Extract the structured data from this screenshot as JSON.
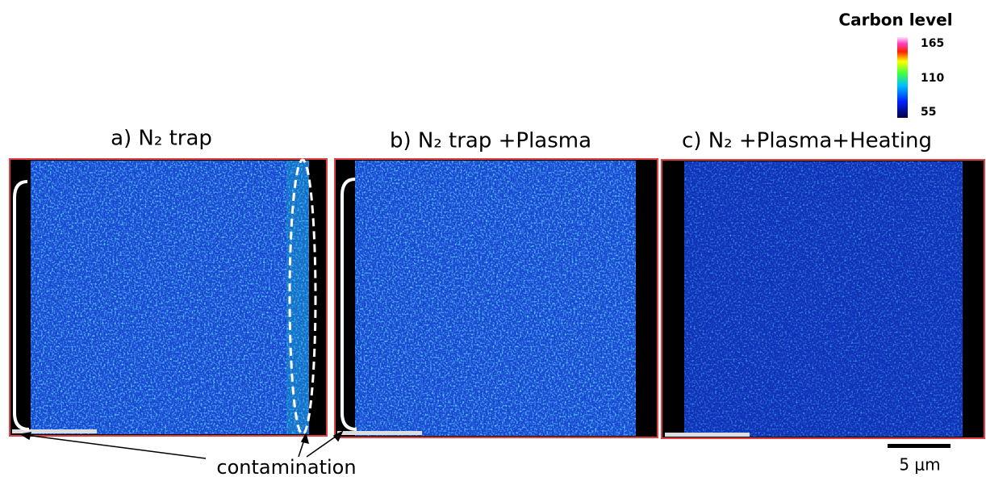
{
  "colorbar": {
    "label": "Carbon level",
    "ticks": [
      "165",
      "110",
      "55"
    ]
  },
  "panels": [
    {
      "title": "a) N₂ trap"
    },
    {
      "title": "b) N₂ trap +Plasma"
    },
    {
      "title": "c) N₂ +Plasma+Heating"
    }
  ],
  "annotation": "contamination",
  "scale_bar": "5 μm"
}
